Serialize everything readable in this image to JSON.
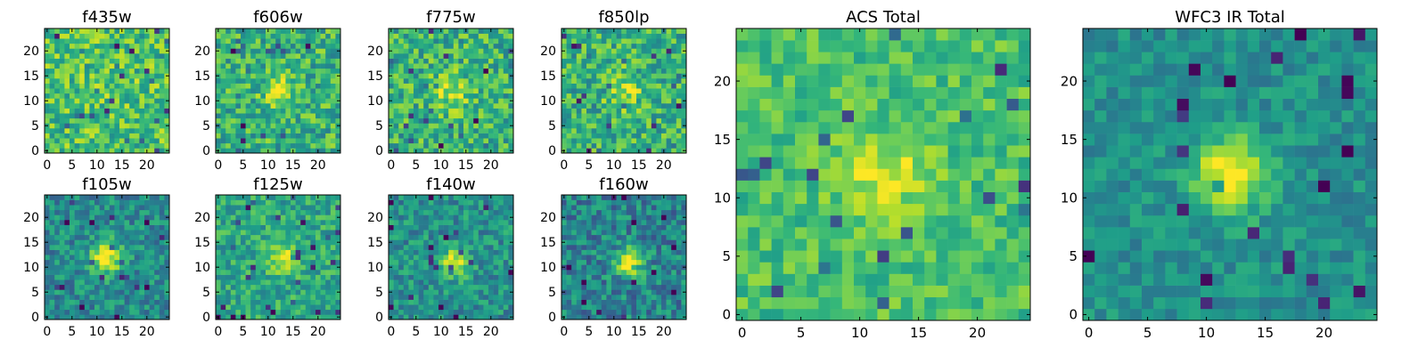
{
  "chart_data": [
    {
      "type": "heatmap",
      "title": "f435w",
      "xlim": [
        -0.5,
        24.5
      ],
      "ylim": [
        -0.5,
        24.5
      ],
      "xticks": [
        0,
        5,
        10,
        15,
        20
      ],
      "yticks": [
        0,
        5,
        10,
        15,
        20
      ],
      "colormap": "viridis",
      "grid": {
        "width": 25,
        "height": 25,
        "center": [
          12,
          12
        ],
        "peak": 0.74,
        "sigma": 6.0,
        "background": 0.7,
        "noise": 0.22,
        "seed": 11
      }
    },
    {
      "type": "heatmap",
      "title": "f606w",
      "xlim": [
        -0.5,
        24.5
      ],
      "ylim": [
        -0.5,
        24.5
      ],
      "xticks": [
        0,
        5,
        10,
        15,
        20
      ],
      "yticks": [
        0,
        5,
        10,
        15,
        20
      ],
      "colormap": "viridis",
      "grid": {
        "width": 25,
        "height": 25,
        "center": [
          12,
          12
        ],
        "peak": 0.92,
        "sigma": 2.2,
        "background": 0.64,
        "noise": 0.22,
        "seed": 22
      }
    },
    {
      "type": "heatmap",
      "title": "f775w",
      "xlim": [
        -0.5,
        24.5
      ],
      "ylim": [
        -0.5,
        24.5
      ],
      "xticks": [
        0,
        5,
        10,
        15,
        20
      ],
      "yticks": [
        0,
        5,
        10,
        15,
        20
      ],
      "colormap": "viridis",
      "grid": {
        "width": 25,
        "height": 25,
        "center": [
          12,
          12
        ],
        "peak": 0.92,
        "sigma": 2.4,
        "background": 0.64,
        "noise": 0.22,
        "seed": 33
      }
    },
    {
      "type": "heatmap",
      "title": "f850lp",
      "xlim": [
        -0.5,
        24.5
      ],
      "ylim": [
        -0.5,
        24.5
      ],
      "xticks": [
        0,
        5,
        10,
        15,
        20
      ],
      "yticks": [
        0,
        5,
        10,
        15,
        20
      ],
      "colormap": "viridis",
      "grid": {
        "width": 25,
        "height": 25,
        "center": [
          12,
          12
        ],
        "peak": 0.88,
        "sigma": 2.6,
        "background": 0.64,
        "noise": 0.22,
        "seed": 44
      }
    },
    {
      "type": "heatmap",
      "title": "f105w",
      "xlim": [
        -0.5,
        24.5
      ],
      "ylim": [
        -0.5,
        24.5
      ],
      "xticks": [
        0,
        5,
        10,
        15,
        20
      ],
      "yticks": [
        0,
        5,
        10,
        15,
        20
      ],
      "colormap": "viridis",
      "grid": {
        "width": 25,
        "height": 25,
        "center": [
          12,
          12
        ],
        "peak": 1.0,
        "sigma": 2.2,
        "background": 0.48,
        "noise": 0.18,
        "seed": 55
      }
    },
    {
      "type": "heatmap",
      "title": "f125w",
      "xlim": [
        -0.5,
        24.5
      ],
      "ylim": [
        -0.5,
        24.5
      ],
      "xticks": [
        0,
        5,
        10,
        15,
        20
      ],
      "yticks": [
        0,
        5,
        10,
        15,
        20
      ],
      "colormap": "viridis",
      "grid": {
        "width": 25,
        "height": 25,
        "center": [
          13,
          12
        ],
        "peak": 1.0,
        "sigma": 2.0,
        "background": 0.6,
        "noise": 0.17,
        "seed": 66
      }
    },
    {
      "type": "heatmap",
      "title": "f140w",
      "xlim": [
        -0.5,
        24.5
      ],
      "ylim": [
        -0.5,
        24.5
      ],
      "xticks": [
        0,
        5,
        10,
        15,
        20
      ],
      "yticks": [
        0,
        5,
        10,
        15,
        20
      ],
      "colormap": "viridis",
      "grid": {
        "width": 25,
        "height": 25,
        "center": [
          13,
          11
        ],
        "peak": 0.95,
        "sigma": 2.0,
        "background": 0.5,
        "noise": 0.18,
        "seed": 77
      }
    },
    {
      "type": "heatmap",
      "title": "f160w",
      "xlim": [
        -0.5,
        24.5
      ],
      "ylim": [
        -0.5,
        24.5
      ],
      "xticks": [
        0,
        5,
        10,
        15,
        20
      ],
      "yticks": [
        0,
        5,
        10,
        15,
        20
      ],
      "colormap": "viridis",
      "grid": {
        "width": 25,
        "height": 25,
        "center": [
          13,
          11
        ],
        "peak": 0.97,
        "sigma": 2.0,
        "background": 0.45,
        "noise": 0.2,
        "seed": 88
      }
    },
    {
      "type": "heatmap",
      "title": "ACS Total",
      "xlim": [
        -0.5,
        24.5
      ],
      "ylim": [
        -0.5,
        24.5
      ],
      "xticks": [
        0,
        5,
        10,
        15,
        20
      ],
      "yticks": [
        0,
        5,
        10,
        15,
        20
      ],
      "colormap": "viridis",
      "grid": {
        "width": 25,
        "height": 25,
        "center": [
          12,
          12
        ],
        "peak": 0.95,
        "sigma": 2.6,
        "background": 0.7,
        "noise": 0.14,
        "seed": 99
      }
    },
    {
      "type": "heatmap",
      "title": "WFC3 IR Total",
      "xlim": [
        -0.5,
        24.5
      ],
      "ylim": [
        -0.5,
        24.5
      ],
      "xticks": [
        0,
        5,
        10,
        15,
        20
      ],
      "yticks": [
        0,
        5,
        10,
        15,
        20
      ],
      "colormap": "viridis",
      "grid": {
        "width": 25,
        "height": 25,
        "center": [
          12,
          12
        ],
        "peak": 1.0,
        "sigma": 2.3,
        "background": 0.5,
        "noise": 0.12,
        "seed": 111
      }
    }
  ]
}
